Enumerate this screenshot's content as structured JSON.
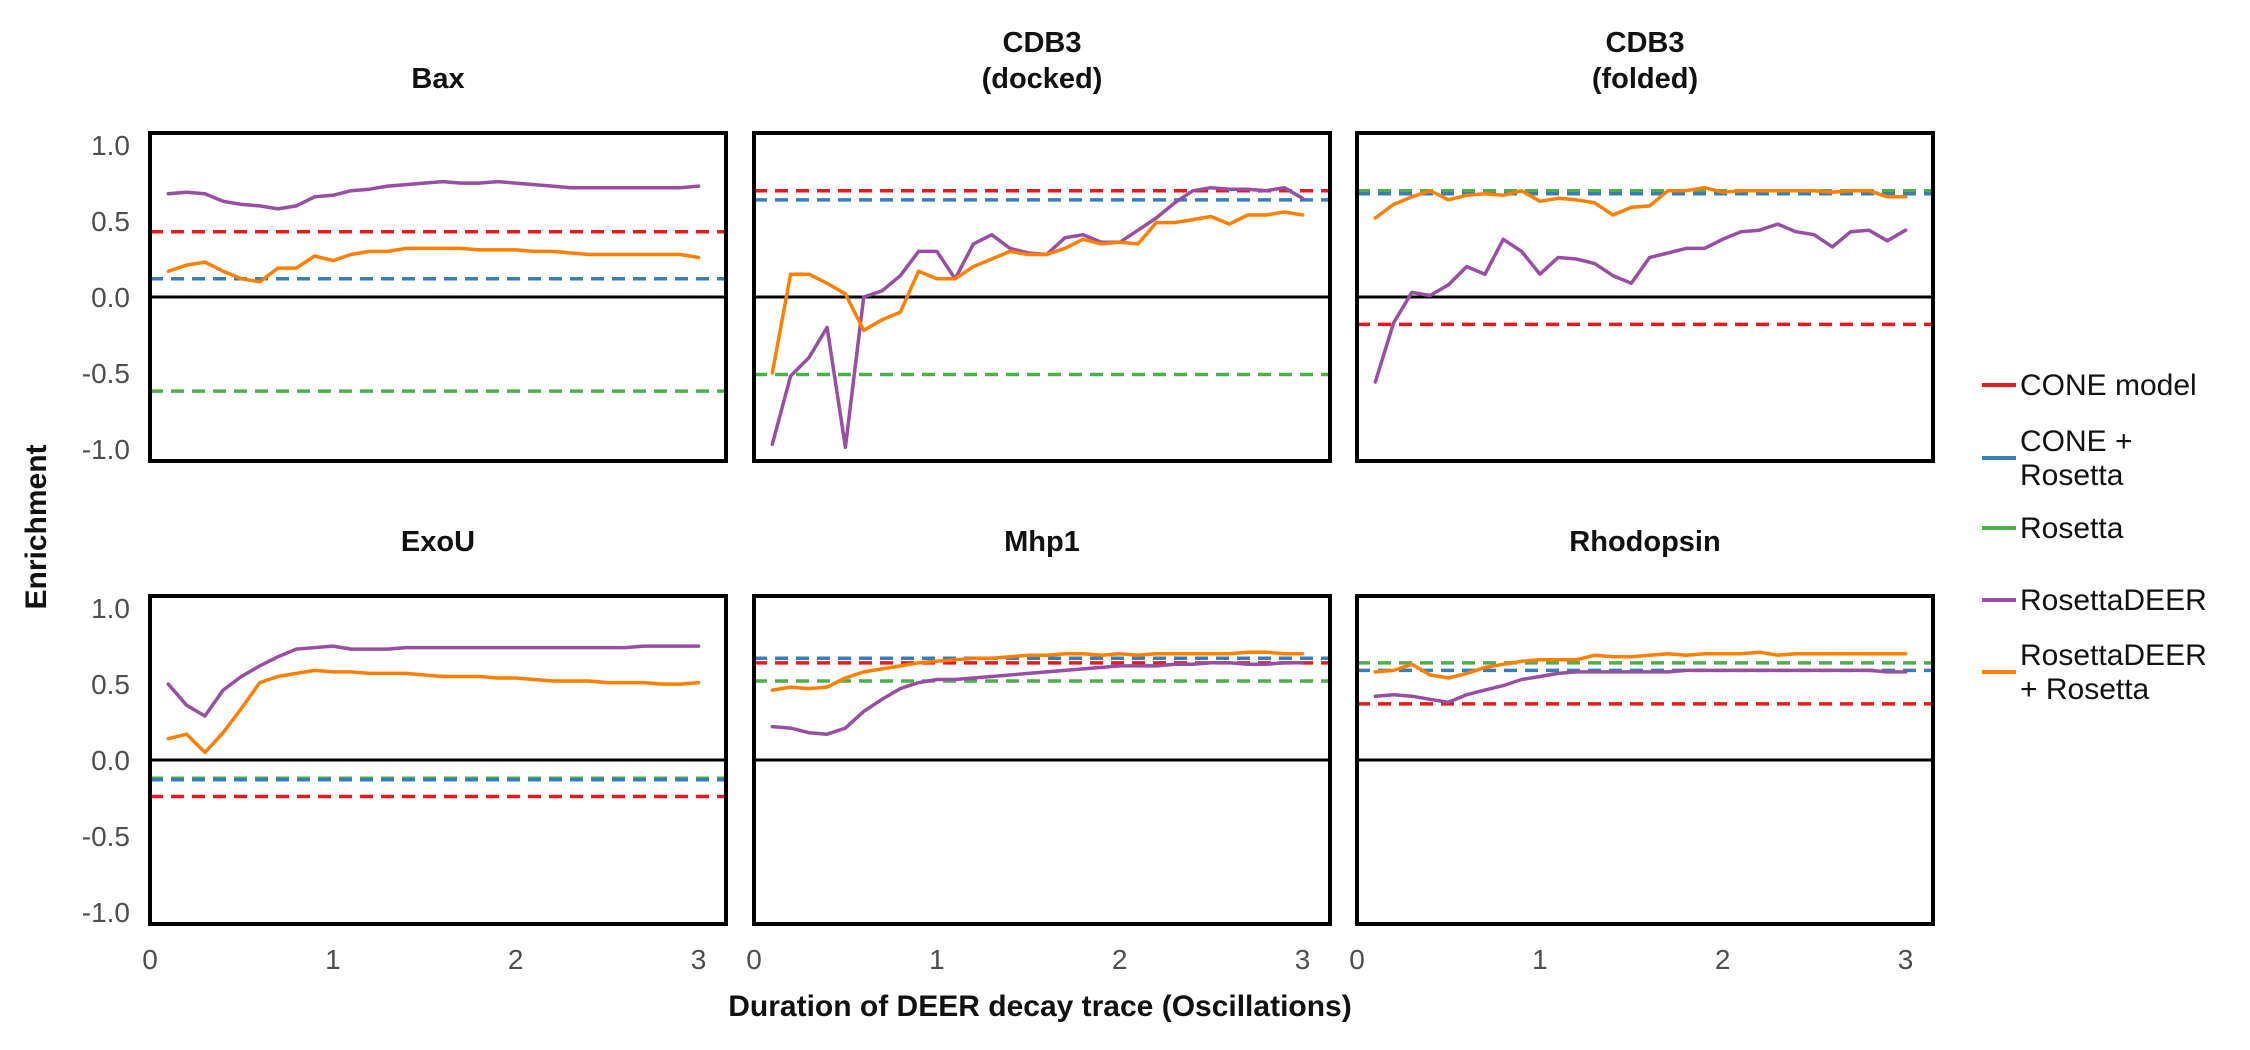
{
  "chart_data": {
    "type": "line",
    "xlabel": "Duration of DEER decay trace (Oscillations)",
    "ylabel": "Enrichment",
    "xlim": [
      0,
      3.15
    ],
    "ylim": [
      -1.08,
      1.08
    ],
    "xticks": [
      0,
      1,
      2,
      3
    ],
    "yticks": [
      -1.0,
      -0.5,
      0.0,
      0.5,
      1.0
    ],
    "ytick_labels": [
      "-1.0",
      "-0.5",
      "0.0",
      "0.5",
      "1.0"
    ],
    "grid": false,
    "legend_position": "right",
    "colors": {
      "CONE model": "#e41a1c",
      "CONE + Rosetta": "#377eb8",
      "Rosetta": "#4daf4a",
      "RosettaDEER": "#984ea3",
      "RosettaDEER + Rosetta": "#ff7f00"
    },
    "legend": [
      {
        "key": "cone",
        "lines": [
          "CONE model"
        ],
        "color": "#e41a1c"
      },
      {
        "key": "cone_rosetta",
        "lines": [
          "CONE +",
          "Rosetta"
        ],
        "color": "#377eb8"
      },
      {
        "key": "rosetta",
        "lines": [
          "Rosetta"
        ],
        "color": "#4daf4a"
      },
      {
        "key": "rosettadeer",
        "lines": [
          "RosettaDEER"
        ],
        "color": "#984ea3"
      },
      {
        "key": "rosettadeer_rosetta",
        "lines": [
          "RosettaDEER",
          "+ Rosetta"
        ],
        "color": "#ff7f00"
      }
    ],
    "x": [
      0.1,
      0.2,
      0.3,
      0.4,
      0.5,
      0.6,
      0.7,
      0.8,
      0.9,
      1.0,
      1.1,
      1.2,
      1.3,
      1.4,
      1.5,
      1.6,
      1.7,
      1.8,
      1.9,
      2.0,
      2.1,
      2.2,
      2.3,
      2.4,
      2.5,
      2.6,
      2.7,
      2.8,
      2.9,
      3.0
    ],
    "panels": [
      {
        "title": [
          "Bax"
        ],
        "baselines": {
          "cone": 0.43,
          "cone_rosetta": 0.12,
          "rosetta": -0.62
        },
        "series": [
          {
            "key": "rosettadeer",
            "values": [
              0.68,
              0.69,
              0.68,
              0.63,
              0.61,
              0.6,
              0.58,
              0.6,
              0.66,
              0.67,
              0.7,
              0.71,
              0.73,
              0.74,
              0.75,
              0.76,
              0.75,
              0.75,
              0.76,
              0.75,
              0.74,
              0.73,
              0.72,
              0.72,
              0.72,
              0.72,
              0.72,
              0.72,
              0.72,
              0.73
            ]
          },
          {
            "key": "rosettadeer_rosetta",
            "values": [
              0.17,
              0.21,
              0.23,
              0.17,
              0.12,
              0.1,
              0.19,
              0.19,
              0.27,
              0.24,
              0.28,
              0.3,
              0.3,
              0.32,
              0.32,
              0.32,
              0.32,
              0.31,
              0.31,
              0.31,
              0.3,
              0.3,
              0.29,
              0.28,
              0.28,
              0.28,
              0.28,
              0.28,
              0.28,
              0.26
            ]
          }
        ]
      },
      {
        "title": [
          "CDB3",
          "(docked)"
        ],
        "baselines": {
          "cone": 0.7,
          "cone_rosetta": 0.64,
          "rosetta": -0.51
        },
        "series": [
          {
            "key": "rosettadeer",
            "values": [
              -0.97,
              -0.52,
              -0.4,
              -0.2,
              -0.99,
              0.0,
              0.04,
              0.14,
              0.3,
              0.3,
              0.12,
              0.35,
              0.41,
              0.32,
              0.29,
              0.28,
              0.39,
              0.41,
              0.36,
              0.36,
              0.44,
              0.52,
              0.62,
              0.7,
              0.72,
              0.71,
              0.71,
              0.7,
              0.72,
              0.65
            ]
          },
          {
            "key": "rosettadeer_rosetta",
            "values": [
              -0.5,
              0.15,
              0.15,
              0.09,
              0.02,
              -0.22,
              -0.15,
              -0.1,
              0.17,
              0.12,
              0.12,
              0.2,
              0.25,
              0.3,
              0.28,
              0.28,
              0.32,
              0.38,
              0.35,
              0.36,
              0.35,
              0.49,
              0.49,
              0.51,
              0.53,
              0.48,
              0.54,
              0.54,
              0.56,
              0.54
            ]
          }
        ]
      },
      {
        "title": [
          "CDB3",
          "(folded)"
        ],
        "baselines": {
          "cone": -0.18,
          "cone_rosetta": 0.68,
          "rosetta": 0.7
        },
        "series": [
          {
            "key": "rosettadeer",
            "values": [
              -0.56,
              -0.17,
              0.03,
              0.01,
              0.08,
              0.2,
              0.15,
              0.38,
              0.3,
              0.15,
              0.26,
              0.25,
              0.22,
              0.14,
              0.09,
              0.26,
              0.29,
              0.32,
              0.32,
              0.38,
              0.43,
              0.44,
              0.48,
              0.43,
              0.41,
              0.33,
              0.43,
              0.44,
              0.37,
              0.44
            ]
          },
          {
            "key": "rosettadeer_rosetta",
            "values": [
              0.52,
              0.61,
              0.66,
              0.7,
              0.64,
              0.67,
              0.68,
              0.67,
              0.7,
              0.63,
              0.65,
              0.64,
              0.62,
              0.54,
              0.59,
              0.6,
              0.7,
              0.7,
              0.72,
              0.69,
              0.7,
              0.7,
              0.7,
              0.7,
              0.7,
              0.69,
              0.7,
              0.7,
              0.66,
              0.66
            ]
          }
        ]
      },
      {
        "title": [
          "ExoU"
        ],
        "baselines": {
          "cone": -0.24,
          "cone_rosetta": -0.13,
          "rosetta": -0.12
        },
        "series": [
          {
            "key": "rosettadeer",
            "values": [
              0.5,
              0.36,
              0.29,
              0.46,
              0.55,
              0.62,
              0.68,
              0.73,
              0.74,
              0.75,
              0.73,
              0.73,
              0.73,
              0.74,
              0.74,
              0.74,
              0.74,
              0.74,
              0.74,
              0.74,
              0.74,
              0.74,
              0.74,
              0.74,
              0.74,
              0.74,
              0.75,
              0.75,
              0.75,
              0.75
            ]
          },
          {
            "key": "rosettadeer_rosetta",
            "values": [
              0.14,
              0.17,
              0.05,
              0.18,
              0.34,
              0.51,
              0.55,
              0.57,
              0.59,
              0.58,
              0.58,
              0.57,
              0.57,
              0.57,
              0.56,
              0.55,
              0.55,
              0.55,
              0.54,
              0.54,
              0.53,
              0.52,
              0.52,
              0.52,
              0.51,
              0.51,
              0.51,
              0.5,
              0.5,
              0.51
            ]
          }
        ]
      },
      {
        "title": [
          "Mhp1"
        ],
        "baselines": {
          "cone": 0.64,
          "cone_rosetta": 0.67,
          "rosetta": 0.52
        },
        "series": [
          {
            "key": "rosettadeer",
            "values": [
              0.22,
              0.21,
              0.18,
              0.17,
              0.21,
              0.32,
              0.4,
              0.47,
              0.51,
              0.53,
              0.53,
              0.54,
              0.55,
              0.56,
              0.57,
              0.58,
              0.59,
              0.6,
              0.61,
              0.62,
              0.62,
              0.62,
              0.63,
              0.63,
              0.64,
              0.64,
              0.63,
              0.63,
              0.64,
              0.64
            ]
          },
          {
            "key": "rosettadeer_rosetta",
            "values": [
              0.46,
              0.48,
              0.47,
              0.48,
              0.54,
              0.58,
              0.6,
              0.62,
              0.64,
              0.65,
              0.66,
              0.67,
              0.67,
              0.68,
              0.69,
              0.69,
              0.7,
              0.7,
              0.69,
              0.7,
              0.69,
              0.7,
              0.7,
              0.7,
              0.7,
              0.7,
              0.71,
              0.71,
              0.7,
              0.7
            ]
          }
        ]
      },
      {
        "title": [
          "Rhodopsin"
        ],
        "baselines": {
          "cone": 0.37,
          "cone_rosetta": 0.59,
          "rosetta": 0.64
        },
        "series": [
          {
            "key": "rosettadeer",
            "values": [
              0.42,
              0.43,
              0.42,
              0.4,
              0.38,
              0.43,
              0.46,
              0.49,
              0.53,
              0.55,
              0.57,
              0.58,
              0.58,
              0.58,
              0.58,
              0.58,
              0.58,
              0.59,
              0.59,
              0.59,
              0.59,
              0.59,
              0.59,
              0.59,
              0.59,
              0.59,
              0.59,
              0.59,
              0.58,
              0.58
            ]
          },
          {
            "key": "rosettadeer_rosetta",
            "values": [
              0.58,
              0.59,
              0.63,
              0.56,
              0.54,
              0.57,
              0.61,
              0.63,
              0.65,
              0.66,
              0.66,
              0.66,
              0.69,
              0.68,
              0.68,
              0.69,
              0.7,
              0.69,
              0.7,
              0.7,
              0.7,
              0.71,
              0.69,
              0.7,
              0.7,
              0.7,
              0.7,
              0.7,
              0.7,
              0.7
            ]
          }
        ]
      }
    ]
  }
}
